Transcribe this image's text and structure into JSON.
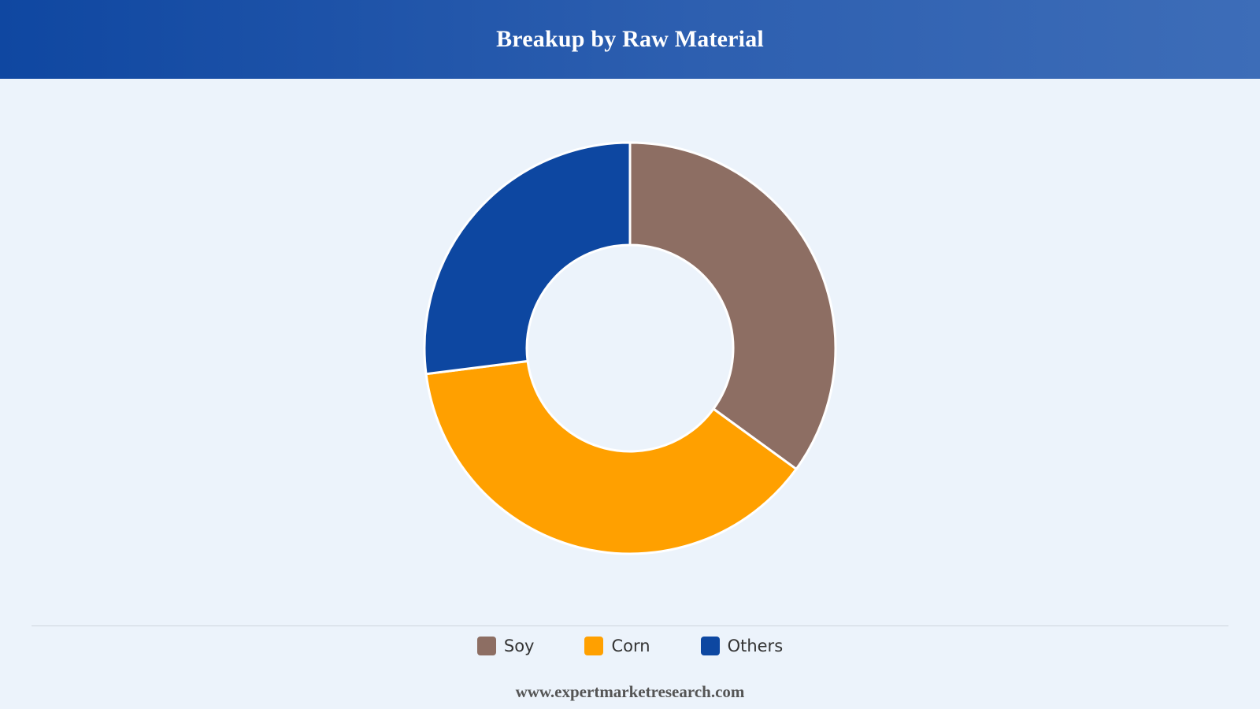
{
  "header": {
    "title": "Breakup by Raw Material"
  },
  "footer": {
    "url": "www.expertmarketresearch.com"
  },
  "chart_data": {
    "type": "pie",
    "variant": "donut",
    "title": "Breakup by Raw Material",
    "categories": [
      "Soy",
      "Corn",
      "Others"
    ],
    "values": [
      35,
      38,
      27
    ],
    "colors": [
      "#8d6e63",
      "#ffa000",
      "#0d47a1"
    ],
    "legend": "bottom"
  }
}
